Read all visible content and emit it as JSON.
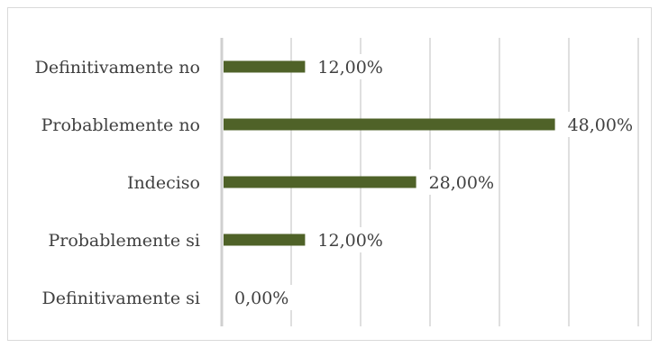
{
  "chart_data": {
    "type": "bar",
    "orientation": "horizontal",
    "categories": [
      "Definitivamente no",
      "Probablemente no",
      "Indeciso",
      "Probablemente si",
      "Definitivamente si"
    ],
    "values": [
      12,
      48,
      28,
      12,
      0
    ],
    "value_labels": [
      "12,00%",
      "48,00%",
      "28,00%",
      "12,00%",
      "0,00%"
    ],
    "xlim": [
      0,
      60
    ],
    "grid": true,
    "bar_color": "#4f6228",
    "grid_color": "#bfbfbf",
    "title": "",
    "xlabel": "",
    "ylabel": ""
  }
}
